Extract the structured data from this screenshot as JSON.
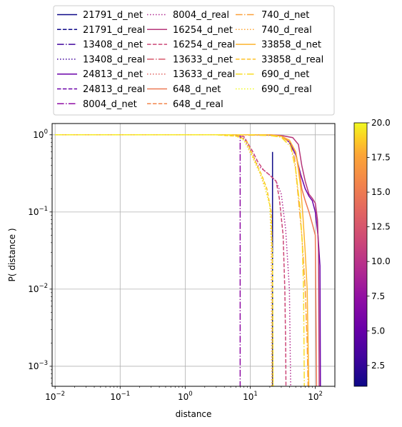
{
  "chart_data": {
    "type": "line",
    "title": "",
    "xlabel": "distance",
    "ylabel": "P( distance )",
    "xscale": "log",
    "yscale": "log",
    "xlim": [
      0.009,
      200
    ],
    "ylim": [
      0.00055,
      1.4
    ],
    "grid": true,
    "legend_position": "top, above plot",
    "x_ticks": [
      {
        "value": 0.01,
        "base": "10",
        "exp": "−2"
      },
      {
        "value": 0.1,
        "base": "10",
        "exp": "−1"
      },
      {
        "value": 1,
        "base": "10",
        "exp": "0"
      },
      {
        "value": 10,
        "base": "10",
        "exp": "1"
      },
      {
        "value": 100,
        "base": "10",
        "exp": "2"
      }
    ],
    "y_ticks": [
      {
        "value": 0.001,
        "base": "10",
        "exp": "−3"
      },
      {
        "value": 0.01,
        "base": "10",
        "exp": "−2"
      },
      {
        "value": 0.1,
        "base": "10",
        "exp": "−1"
      },
      {
        "value": 1,
        "base": "10",
        "exp": "0"
      }
    ],
    "colorbar": {
      "min": 1,
      "max": 20,
      "ticks": [
        "2.5",
        "5.0",
        "7.5",
        "10.0",
        "12.5",
        "15.0",
        "17.5",
        "20.0"
      ],
      "tick_values": [
        2.5,
        5.0,
        7.5,
        10.0,
        12.5,
        15.0,
        17.5,
        20.0
      ],
      "colormap": "plasma"
    },
    "series": [
      {
        "name": "21791_d_net",
        "color": "#0d0887",
        "dash": "solid",
        "points": [
          [
            22,
            0.6
          ],
          [
            22,
            0.0004
          ]
        ]
      },
      {
        "name": "21791_d_real",
        "color": "#0d0887",
        "dash": "dashed",
        "points": []
      },
      {
        "name": "13408_d_net",
        "color": "#41049d",
        "dash": "dashdot",
        "points": []
      },
      {
        "name": "13408_d_real",
        "color": "#41049d",
        "dash": "dotted",
        "points": []
      },
      {
        "name": "24813_d_net",
        "color": "#6a00a8",
        "dash": "solid",
        "points": [
          [
            0.01,
            1
          ],
          [
            10,
            1
          ],
          [
            20,
            0.99
          ],
          [
            30,
            0.97
          ],
          [
            40,
            0.8
          ],
          [
            50,
            0.55
          ],
          [
            60,
            0.3
          ],
          [
            70,
            0.2
          ],
          [
            80,
            0.16
          ],
          [
            90,
            0.14
          ],
          [
            100,
            0.1
          ],
          [
            110,
            0.05
          ],
          [
            118,
            0.02
          ],
          [
            120,
            0.0004
          ]
        ]
      },
      {
        "name": "24813_d_real",
        "color": "#6a00a8",
        "dash": "dashed",
        "points": []
      },
      {
        "name": "8004_d_net",
        "color": "#8f0da4",
        "dash": "dashdot",
        "points": [
          [
            0.01,
            1
          ],
          [
            7,
            1
          ],
          [
            7,
            0.0004
          ]
        ]
      },
      {
        "name": "8004_d_real",
        "color": "#b12a90",
        "dash": "dotted",
        "points": [
          [
            0.01,
            1
          ],
          [
            3,
            1
          ],
          [
            6,
            0.98
          ],
          [
            8,
            0.9
          ],
          [
            11,
            0.55
          ],
          [
            13,
            0.4
          ],
          [
            16,
            0.35
          ],
          [
            20,
            0.3
          ],
          [
            25,
            0.25
          ],
          [
            30,
            0.17
          ],
          [
            35,
            0.06
          ],
          [
            40,
            0.01
          ],
          [
            42,
            0.0004
          ]
        ]
      },
      {
        "name": "16254_d_net",
        "color": "#b63679",
        "dash": "solid",
        "points": [
          [
            0.01,
            1
          ],
          [
            5,
            1
          ],
          [
            20,
            1
          ],
          [
            30,
            0.98
          ],
          [
            45,
            0.92
          ],
          [
            55,
            0.75
          ],
          [
            62,
            0.4
          ],
          [
            70,
            0.25
          ],
          [
            80,
            0.17
          ],
          [
            90,
            0.15
          ],
          [
            100,
            0.13
          ],
          [
            108,
            0.08
          ],
          [
            112,
            0.03
          ],
          [
            115,
            0.0004
          ]
        ]
      },
      {
        "name": "16254_d_real",
        "color": "#cc4778",
        "dash": "dashed",
        "points": [
          [
            0.01,
            1
          ],
          [
            4,
            1
          ],
          [
            8,
            0.95
          ],
          [
            9,
            0.8
          ],
          [
            11,
            0.6
          ],
          [
            13,
            0.45
          ],
          [
            16,
            0.35
          ],
          [
            20,
            0.3
          ],
          [
            25,
            0.25
          ],
          [
            28,
            0.15
          ],
          [
            32,
            0.05
          ],
          [
            34,
            0.01
          ],
          [
            35,
            0.002
          ],
          [
            35.5,
            0.0004
          ]
        ]
      },
      {
        "name": "13633_d_net",
        "color": "#d8576b",
        "dash": "dashdot",
        "points": []
      },
      {
        "name": "13633_d_real",
        "color": "#e16462",
        "dash": "dotted",
        "points": []
      },
      {
        "name": "648_d_net",
        "color": "#ed7953",
        "dash": "solid",
        "points": [
          [
            0.01,
            1
          ],
          [
            10,
            1
          ],
          [
            20,
            1
          ],
          [
            30,
            0.96
          ],
          [
            40,
            0.85
          ],
          [
            50,
            0.6
          ],
          [
            58,
            0.3
          ],
          [
            62,
            0.2
          ],
          [
            70,
            0.14
          ],
          [
            80,
            0.1
          ],
          [
            90,
            0.07
          ],
          [
            100,
            0.05
          ],
          [
            105,
            0.0004
          ]
        ]
      },
      {
        "name": "648_d_real",
        "color": "#f2844b",
        "dash": "dashed",
        "points": []
      },
      {
        "name": "740_d_net",
        "color": "#fb9f3a",
        "dash": "dashdot",
        "points": [
          [
            0.01,
            1
          ],
          [
            5,
            1
          ],
          [
            20,
            0.98
          ],
          [
            30,
            0.95
          ],
          [
            40,
            0.8
          ],
          [
            48,
            0.5
          ],
          [
            55,
            0.15
          ],
          [
            62,
            0.05
          ],
          [
            70,
            0.01
          ],
          [
            75,
            0.002
          ],
          [
            78,
            0.0004
          ]
        ]
      },
      {
        "name": "740_d_real",
        "color": "#fca636",
        "dash": "dotted",
        "points": [
          [
            0.01,
            1
          ],
          [
            3,
            1
          ],
          [
            6,
            0.97
          ],
          [
            8,
            0.85
          ],
          [
            11,
            0.5
          ],
          [
            14,
            0.32
          ],
          [
            17,
            0.2
          ],
          [
            20,
            0.12
          ],
          [
            21,
            0.04
          ],
          [
            21.5,
            0.0004
          ]
        ]
      },
      {
        "name": "33858_d_net",
        "color": "#fdb42f",
        "dash": "solid",
        "points": [
          [
            0.01,
            1
          ],
          [
            10,
            1
          ],
          [
            20,
            1
          ],
          [
            30,
            0.96
          ],
          [
            40,
            0.85
          ],
          [
            50,
            0.6
          ],
          [
            55,
            0.35
          ],
          [
            60,
            0.2
          ],
          [
            65,
            0.08
          ],
          [
            70,
            0.03
          ],
          [
            75,
            0.01
          ],
          [
            80,
            0.0004
          ]
        ]
      },
      {
        "name": "33858_d_real",
        "color": "#fec229",
        "dash": "dashed",
        "points": [
          [
            0.01,
            1
          ],
          [
            3,
            1
          ],
          [
            7,
            0.95
          ],
          [
            9,
            0.8
          ],
          [
            12,
            0.45
          ],
          [
            15,
            0.3
          ],
          [
            18,
            0.2
          ],
          [
            21,
            0.1
          ],
          [
            22,
            0.02
          ],
          [
            22.5,
            0.0004
          ]
        ]
      },
      {
        "name": "690_d_net",
        "color": "#f9dc24",
        "dash": "dashdot",
        "points": [
          [
            0.01,
            1
          ],
          [
            10,
            1
          ],
          [
            20,
            0.98
          ],
          [
            30,
            0.93
          ],
          [
            42,
            0.7
          ],
          [
            50,
            0.35
          ],
          [
            58,
            0.12
          ],
          [
            63,
            0.04
          ],
          [
            66,
            0.01
          ],
          [
            68,
            0.0004
          ]
        ]
      },
      {
        "name": "690_d_real",
        "color": "#f0f921",
        "dash": "dotted",
        "points": [
          [
            0.01,
            1
          ],
          [
            3,
            1
          ],
          [
            6,
            0.97
          ],
          [
            8,
            0.85
          ],
          [
            10,
            0.6
          ],
          [
            13,
            0.38
          ],
          [
            16,
            0.25
          ],
          [
            20,
            0.12
          ],
          [
            22,
            0.03
          ],
          [
            22.5,
            0.0004
          ]
        ]
      }
    ]
  }
}
